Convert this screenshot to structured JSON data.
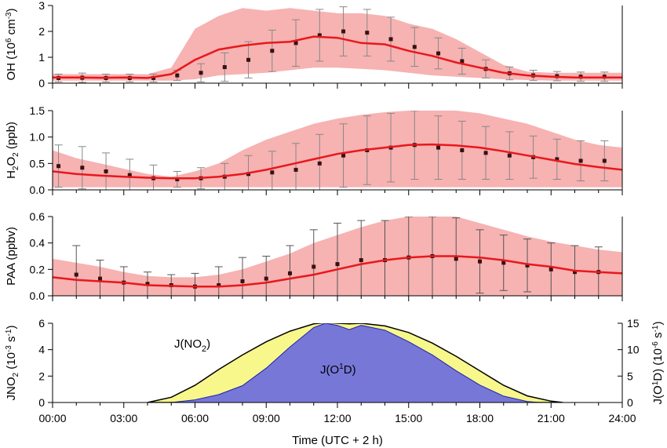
{
  "chart_data": [
    {
      "type": "line",
      "id": "oh",
      "ylabel": "OH (10^6 cm^-3)",
      "ylim": [
        0,
        3
      ],
      "yticks": [
        0,
        1,
        2,
        3
      ],
      "xlim": [
        0,
        24
      ],
      "series": [
        {
          "role": "observed",
          "style": "points-with-error-bars",
          "x": [
            0.25,
            1.25,
            2.25,
            3.25,
            4.25,
            5.25,
            6.25,
            7.25,
            8.25,
            9.25,
            10.25,
            11.25,
            12.25,
            13.25,
            14.25,
            15.25,
            16.25,
            17.25,
            18.25,
            19.25,
            20.25,
            21.25,
            22.25,
            23.25
          ],
          "y": [
            0.2,
            0.21,
            0.2,
            0.2,
            0.2,
            0.3,
            0.4,
            0.62,
            0.9,
            1.25,
            1.55,
            1.85,
            2.0,
            1.95,
            1.7,
            1.4,
            1.15,
            0.85,
            0.55,
            0.38,
            0.3,
            0.27,
            0.25,
            0.25
          ],
          "err": [
            0.15,
            0.18,
            0.15,
            0.15,
            0.15,
            0.2,
            0.35,
            0.55,
            0.7,
            0.8,
            0.9,
            1.0,
            0.95,
            0.9,
            0.85,
            0.75,
            0.6,
            0.5,
            0.35,
            0.25,
            0.2,
            0.18,
            0.18,
            0.18
          ]
        },
        {
          "role": "model",
          "style": "line",
          "color": "#e8181c",
          "x": [
            0,
            1,
            2,
            3,
            4,
            5,
            6,
            7,
            8,
            9,
            10,
            11,
            12,
            13,
            14,
            15,
            16,
            17,
            18,
            19,
            20,
            21,
            22,
            23,
            24
          ],
          "y": [
            0.22,
            0.22,
            0.21,
            0.22,
            0.2,
            0.35,
            0.9,
            1.3,
            1.45,
            1.55,
            1.6,
            1.8,
            1.75,
            1.55,
            1.5,
            1.25,
            1.05,
            0.8,
            0.6,
            0.4,
            0.3,
            0.25,
            0.22,
            0.22,
            0.22
          ]
        },
        {
          "role": "model-range",
          "style": "band",
          "color": "#f7b2b2",
          "x": [
            0,
            1,
            2,
            3,
            4,
            5,
            6,
            7,
            8,
            9,
            10,
            11,
            12,
            13,
            14,
            15,
            16,
            17,
            18,
            19,
            20,
            21,
            22,
            23,
            24
          ],
          "low": [
            0.1,
            0.1,
            0.1,
            0.1,
            0.1,
            0.1,
            0.15,
            0.3,
            0.35,
            0.4,
            0.5,
            0.6,
            0.6,
            0.55,
            0.5,
            0.4,
            0.3,
            0.25,
            0.2,
            0.15,
            0.12,
            0.1,
            0.1,
            0.1,
            0.1
          ],
          "high": [
            0.35,
            0.35,
            0.35,
            0.35,
            0.35,
            0.6,
            2.1,
            2.6,
            2.9,
            2.8,
            2.9,
            2.8,
            2.7,
            2.7,
            2.6,
            2.3,
            2.1,
            1.7,
            1.2,
            0.7,
            0.45,
            0.4,
            0.4,
            0.4,
            0.4
          ]
        }
      ]
    },
    {
      "type": "line",
      "id": "h2o2",
      "ylabel": "H2O2 (ppb)",
      "ylim": [
        0,
        1.5
      ],
      "yticks": [
        0.0,
        0.5,
        1.0,
        1.5
      ],
      "xlim": [
        0,
        24
      ],
      "series": [
        {
          "role": "observed",
          "style": "points-with-error-bars",
          "x": [
            0.25,
            1.25,
            2.25,
            3.25,
            4.25,
            5.25,
            6.25,
            7.25,
            8.25,
            9.25,
            10.25,
            11.25,
            12.25,
            13.25,
            14.25,
            15.25,
            16.25,
            17.25,
            18.25,
            19.25,
            20.25,
            21.25,
            22.25,
            23.25
          ],
          "y": [
            0.45,
            0.42,
            0.35,
            0.28,
            0.22,
            0.2,
            0.22,
            0.25,
            0.3,
            0.33,
            0.38,
            0.5,
            0.65,
            0.75,
            0.8,
            0.85,
            0.8,
            0.75,
            0.7,
            0.65,
            0.62,
            0.58,
            0.55,
            0.55
          ],
          "err": [
            0.4,
            0.4,
            0.35,
            0.3,
            0.25,
            0.15,
            0.2,
            0.25,
            0.35,
            0.4,
            0.5,
            0.55,
            0.6,
            0.65,
            0.65,
            0.65,
            0.6,
            0.55,
            0.5,
            0.45,
            0.4,
            0.38,
            0.38,
            0.38
          ]
        },
        {
          "role": "model",
          "style": "line",
          "color": "#e8181c",
          "x": [
            0,
            1,
            2,
            3,
            4,
            5,
            6,
            7,
            8,
            9,
            10,
            11,
            12,
            13,
            14,
            15,
            16,
            17,
            18,
            19,
            20,
            21,
            22,
            23,
            24
          ],
          "y": [
            0.35,
            0.3,
            0.27,
            0.25,
            0.23,
            0.22,
            0.22,
            0.25,
            0.3,
            0.38,
            0.48,
            0.58,
            0.68,
            0.75,
            0.8,
            0.85,
            0.86,
            0.84,
            0.8,
            0.73,
            0.65,
            0.57,
            0.49,
            0.43,
            0.38
          ]
        },
        {
          "role": "model-range",
          "style": "band",
          "color": "#f7b2b2",
          "x": [
            0,
            1,
            2,
            3,
            4,
            5,
            6,
            7,
            8,
            9,
            10,
            11,
            12,
            13,
            14,
            15,
            16,
            17,
            18,
            19,
            20,
            21,
            22,
            23,
            24
          ],
          "low": [
            0.05,
            0.05,
            0.05,
            0.05,
            0.05,
            0.05,
            0.05,
            0.05,
            0.05,
            0.05,
            0.05,
            0.05,
            0.05,
            0.05,
            0.05,
            0.05,
            0.05,
            0.05,
            0.05,
            0.05,
            0.05,
            0.05,
            0.05,
            0.05,
            0.05
          ],
          "high": [
            0.75,
            0.6,
            0.5,
            0.4,
            0.3,
            0.25,
            0.35,
            0.5,
            0.75,
            0.95,
            1.1,
            1.25,
            1.35,
            1.42,
            1.47,
            1.5,
            1.52,
            1.5,
            1.45,
            1.35,
            1.25,
            1.1,
            0.95,
            0.85,
            0.8
          ]
        }
      ]
    },
    {
      "type": "line",
      "id": "paa",
      "ylabel": "PAA (ppbv)",
      "ylim": [
        0,
        0.6
      ],
      "yticks": [
        0.0,
        0.2,
        0.4,
        0.6
      ],
      "xlim": [
        0,
        24
      ],
      "series": [
        {
          "role": "observed",
          "style": "points-with-error-bars",
          "x": [
            1,
            2,
            3,
            4,
            5,
            6,
            7,
            8,
            9,
            10,
            11,
            12,
            13,
            14,
            15,
            16,
            17,
            18,
            19,
            20,
            21,
            22,
            23
          ],
          "y": [
            0.16,
            0.13,
            0.1,
            0.09,
            0.08,
            0.07,
            0.08,
            0.11,
            0.13,
            0.17,
            0.22,
            0.24,
            0.27,
            0.27,
            0.29,
            0.3,
            0.28,
            0.26,
            0.25,
            0.23,
            0.2,
            0.18,
            0.18
          ],
          "err": [
            0.22,
            0.14,
            0.12,
            0.09,
            0.08,
            0.1,
            0.14,
            0.18,
            0.17,
            0.21,
            0.28,
            0.31,
            0.3,
            0.3,
            0.31,
            0.3,
            0.31,
            0.24,
            0.21,
            0.2,
            0.2,
            0.2,
            0.19
          ]
        },
        {
          "role": "model",
          "style": "line",
          "color": "#e8181c",
          "x": [
            0,
            1,
            2,
            3,
            4,
            5,
            6,
            7,
            8,
            9,
            10,
            11,
            12,
            13,
            14,
            15,
            16,
            17,
            18,
            19,
            20,
            21,
            22,
            23,
            24
          ],
          "y": [
            0.14,
            0.12,
            0.11,
            0.1,
            0.08,
            0.075,
            0.07,
            0.07,
            0.08,
            0.1,
            0.13,
            0.16,
            0.2,
            0.24,
            0.27,
            0.29,
            0.3,
            0.3,
            0.29,
            0.27,
            0.24,
            0.22,
            0.19,
            0.18,
            0.17
          ]
        },
        {
          "role": "model-range",
          "style": "band",
          "color": "#f7b2b2",
          "x": [
            0,
            1,
            2,
            3,
            4,
            5,
            6,
            7,
            8,
            9,
            10,
            11,
            12,
            13,
            14,
            15,
            16,
            17,
            18,
            19,
            20,
            21,
            22,
            23,
            24
          ],
          "low": [
            0,
            0,
            0,
            0,
            0,
            0,
            0,
            0,
            0,
            0,
            0,
            0,
            0,
            0,
            0,
            0,
            0,
            0,
            0,
            0,
            0,
            0,
            0,
            0,
            0
          ],
          "high": [
            0.28,
            0.25,
            0.22,
            0.18,
            0.15,
            0.14,
            0.14,
            0.16,
            0.2,
            0.26,
            0.32,
            0.4,
            0.46,
            0.52,
            0.57,
            0.6,
            0.6,
            0.6,
            0.55,
            0.5,
            0.45,
            0.41,
            0.38,
            0.35,
            0.33
          ]
        }
      ]
    },
    {
      "type": "area",
      "id": "photolysis",
      "ylabel": "JNO2 (10^-3 s^-1)",
      "ylim": [
        0,
        6
      ],
      "yticks": [
        0,
        2,
        4,
        6
      ],
      "y2label": "J(O1D) (10^-6 s^-1)",
      "y2lim": [
        0,
        15
      ],
      "y2ticks": [
        0,
        5,
        10,
        15
      ],
      "xlim": [
        0,
        24
      ],
      "xticks": [
        "00:00",
        "03:00",
        "06:00",
        "09:00",
        "12:00",
        "15:00",
        "18:00",
        "21:00",
        "24:00"
      ],
      "xlabel": "Time (UTC + 2 h)",
      "annotations": [
        "J(NO2)",
        "J(O1D)"
      ],
      "series": [
        {
          "name": "J(NO2)",
          "axis": "left",
          "color": "#f7f78c",
          "x": [
            4,
            5,
            6,
            7,
            8,
            9,
            10,
            11,
            11.5,
            12,
            12.5,
            13,
            14,
            15,
            16,
            17,
            18,
            19,
            20,
            21,
            21.5
          ],
          "y": [
            0,
            0.4,
            1.3,
            2.5,
            3.6,
            4.6,
            5.4,
            5.95,
            6.05,
            6.0,
            5.95,
            6.0,
            5.8,
            5.3,
            4.5,
            3.5,
            2.4,
            1.3,
            0.5,
            0.1,
            0
          ]
        },
        {
          "name": "J(O1D)",
          "axis": "right",
          "color": "#7777d8",
          "x": [
            5,
            6,
            7,
            8,
            9,
            10,
            11,
            11.5,
            12,
            12.5,
            13,
            14,
            15,
            16,
            17,
            18,
            19,
            20,
            20.5
          ],
          "y": [
            0,
            0.5,
            1.5,
            3.2,
            6.5,
            10.5,
            14.2,
            15.0,
            14.6,
            13.8,
            14.6,
            13.7,
            11.5,
            9.0,
            6.0,
            3.3,
            1.2,
            0.2,
            0
          ]
        }
      ]
    }
  ]
}
